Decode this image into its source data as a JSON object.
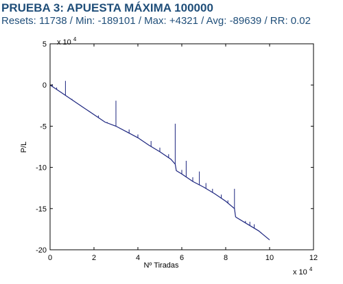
{
  "heading": {
    "title": "PRUEBA 3: APUESTA MÁXIMA 100000",
    "stats": "Resets: 11738 / Min: -189101 / Max: +4321 / Avg: -89639 / RR: 0.02"
  },
  "colors": {
    "heading_text": "#1f4e79",
    "series_line": "#1a237e",
    "axes": "#000000",
    "background": "#ffffff"
  },
  "chart_data": {
    "type": "line",
    "title": "",
    "xlabel": "Nº Tiradas",
    "ylabel": "P/L",
    "x_multiplier_label": "x 10",
    "x_multiplier_exp": "4",
    "y_multiplier_label": "x 10",
    "y_multiplier_exp": "4",
    "xlim": [
      0,
      12
    ],
    "ylim": [
      -20,
      5
    ],
    "xticks": [
      0,
      2,
      4,
      6,
      8,
      10,
      12
    ],
    "yticks": [
      -20,
      -15,
      -10,
      -5,
      0,
      5
    ],
    "xtick_labels": [
      "0",
      "2",
      "4",
      "6",
      "8",
      "10",
      "12"
    ],
    "ytick_labels": [
      "-20",
      "-15",
      "-10",
      "-5",
      "0",
      "5"
    ],
    "grid": false,
    "legend": "none",
    "series": [
      {
        "x": [
          0,
          0.5,
          1.0,
          1.5,
          2.0,
          2.5,
          3.0,
          3.5,
          4.0,
          4.5,
          5.0,
          5.5,
          5.7,
          5.75,
          6.0,
          6.5,
          7.0,
          7.5,
          8.0,
          8.4,
          8.45,
          8.5,
          9.0,
          9.5,
          10.0
        ],
        "y": [
          0.0,
          -0.9,
          -1.8,
          -2.7,
          -3.6,
          -4.5,
          -5.0,
          -5.7,
          -6.4,
          -7.3,
          -8.1,
          -9.0,
          -9.6,
          -10.4,
          -10.8,
          -11.7,
          -12.4,
          -13.2,
          -14.1,
          -15.0,
          -16.0,
          -16.1,
          -16.9,
          -17.7,
          -18.8
        ]
      }
    ],
    "spikes": [
      {
        "x": 0.1,
        "y_top": 0.1
      },
      {
        "x": 0.3,
        "y_top": -0.3
      },
      {
        "x": 0.7,
        "y_top": 0.5
      },
      {
        "x": 1.0,
        "y_top": -1.7
      },
      {
        "x": 1.4,
        "y_top": -2.5
      },
      {
        "x": 1.8,
        "y_top": -3.2
      },
      {
        "x": 2.2,
        "y_top": -3.7
      },
      {
        "x": 2.6,
        "y_top": -4.5
      },
      {
        "x": 3.0,
        "y_top": -1.9
      },
      {
        "x": 3.6,
        "y_top": -5.4
      },
      {
        "x": 4.0,
        "y_top": -6.0
      },
      {
        "x": 4.6,
        "y_top": -6.8
      },
      {
        "x": 5.0,
        "y_top": -7.6
      },
      {
        "x": 5.4,
        "y_top": -8.4
      },
      {
        "x": 5.7,
        "y_top": -4.7
      },
      {
        "x": 6.0,
        "y_top": -10.3
      },
      {
        "x": 6.2,
        "y_top": -9.2
      },
      {
        "x": 6.5,
        "y_top": -11.2
      },
      {
        "x": 6.8,
        "y_top": -10.5
      },
      {
        "x": 7.1,
        "y_top": -11.9
      },
      {
        "x": 7.4,
        "y_top": -12.6
      },
      {
        "x": 7.8,
        "y_top": -13.3
      },
      {
        "x": 8.1,
        "y_top": -14.0
      },
      {
        "x": 8.4,
        "y_top": -12.6
      },
      {
        "x": 8.9,
        "y_top": -16.5
      },
      {
        "x": 9.1,
        "y_top": -16.6
      },
      {
        "x": 9.3,
        "y_top": -16.9
      },
      {
        "x": 9.6,
        "y_top": -17.9
      }
    ]
  }
}
